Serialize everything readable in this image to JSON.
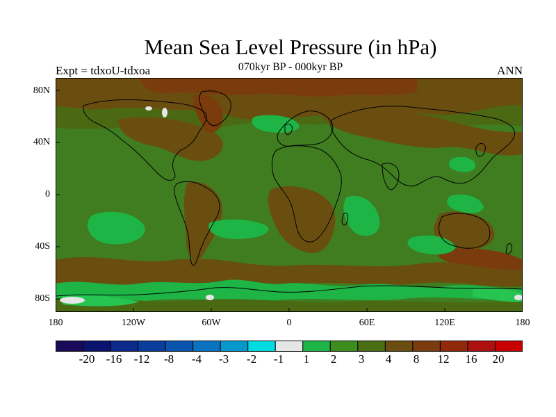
{
  "title": "Mean Sea Level Pressure (in hPa)",
  "subtitle": "070kyr BP - 000kyr BP",
  "left_label": "Expt = tdxoU-tdxoa",
  "right_label": "ANN",
  "lat_ticks": [
    "80N",
    "40N",
    "0",
    "40S",
    "80S"
  ],
  "lon_ticks": [
    "180",
    "120W",
    "60W",
    "0",
    "60E",
    "120E",
    "180"
  ],
  "colorbar": {
    "colors": [
      "#1a0a5a",
      "#0c136e",
      "#0c2a8a",
      "#0a3c9c",
      "#0a54ae",
      "#0a72c0",
      "#0898cc",
      "#00dce0",
      "#e6e6e6",
      "#1eb446",
      "#3c8c1e",
      "#4a6e14",
      "#6a4e10",
      "#7c3c0e",
      "#902a0a",
      "#ac1010",
      "#c80000"
    ],
    "labels": [
      "-20",
      "-16",
      "-12",
      "-8",
      "-4",
      "-3",
      "-2",
      "-1",
      "1",
      "2",
      "3",
      "4",
      "8",
      "12",
      "16",
      "20"
    ]
  },
  "map_colors": {
    "ocean_base": "#3f7d20",
    "band_3_4": "#4b6812",
    "band_4_8": "#6a4e10",
    "band_8_12": "#7a3c0c",
    "band_2_3": "#1eb446",
    "band_1_2_light": "#26c450",
    "band_neg": "#e6e6e6",
    "coast": "#000000"
  }
}
